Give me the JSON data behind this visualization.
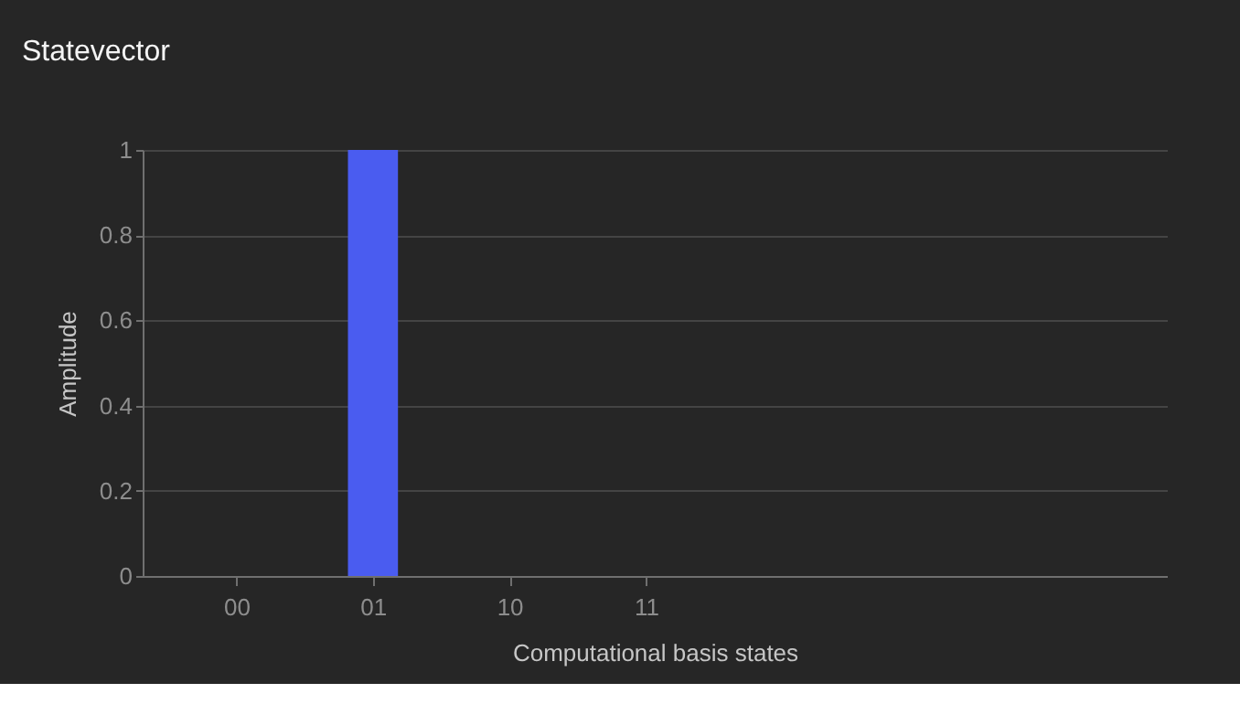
{
  "chart_data": {
    "type": "bar",
    "title": "Statevector",
    "xlabel": "Computational basis states",
    "ylabel": "Amplitude",
    "categories": [
      "00",
      "01",
      "10",
      "11"
    ],
    "values": [
      0,
      1,
      0,
      0
    ],
    "color": "#4a5cf0",
    "ylim": [
      0,
      1
    ],
    "yticks": [
      {
        "value": 0,
        "label": "0"
      },
      0.2,
      0.4,
      0.6,
      0.8,
      {
        "value": 1,
        "label": "1"
      }
    ],
    "grid": "y"
  }
}
